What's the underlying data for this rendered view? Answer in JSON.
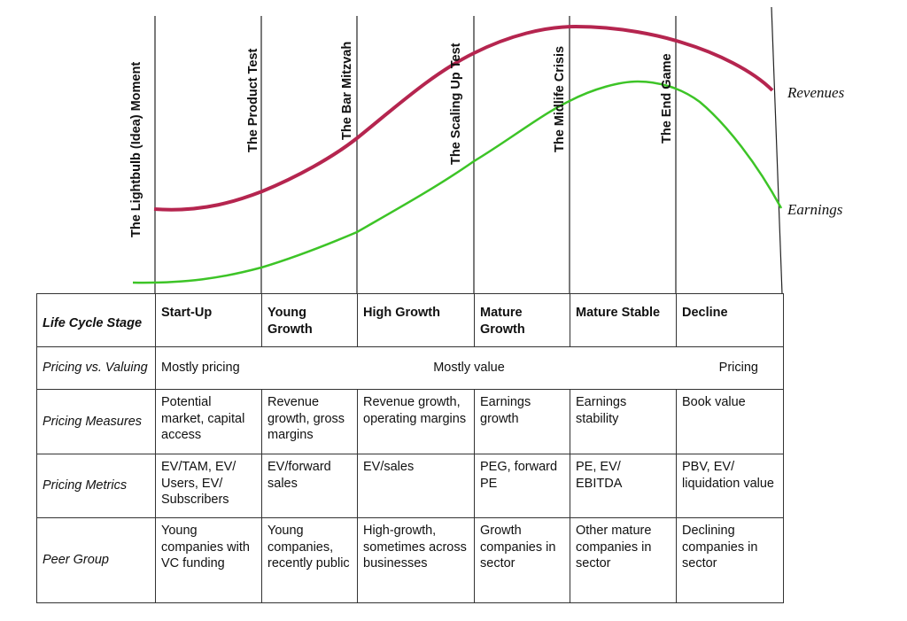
{
  "curves": {
    "revenues_label": "Revenues",
    "earnings_label": "Earnings",
    "revenues_color": "#B5254F",
    "earnings_color": "#3DC427"
  },
  "stage_titles": [
    "The Lightbulb (Idea) Moment",
    "The Product Test",
    "The Bar Mitzvah",
    "The Scaling Up Test",
    "The Midlife Crisis",
    "The End Game"
  ],
  "table": {
    "header": {
      "label": "Life Cycle Stage",
      "stages": [
        "Start-Up",
        "Young Growth",
        "High Growth",
        "Mature Growth",
        "Mature Stable",
        "Decline"
      ]
    },
    "pricing_vs_valuing": {
      "label": "Pricing vs. Valuing",
      "start": "Mostly pricing",
      "middle": "Mostly value",
      "end": "Pricing"
    },
    "pricing_measures": {
      "label": "Pricing Measures",
      "cells": [
        "Potential market, capital access",
        "Revenue growth, gross margins",
        "Revenue growth, operating margins",
        "Earnings growth",
        "Earnings stability",
        "Book value"
      ]
    },
    "pricing_metrics": {
      "label": "Pricing Metrics",
      "cells": [
        "EV/TAM, EV/ Users, EV/ Subscribers",
        "EV/forward sales",
        "EV/sales",
        "PEG, forward PE",
        "PE, EV/ EBITDA",
        "PBV, EV/ liquidation value"
      ]
    },
    "peer_group": {
      "label": "Peer Group",
      "cells": [
        "Young companies with VC funding",
        "Young companies, recently public",
        "High-growth, sometimes across businesses",
        "Growth companies in sector",
        "Other mature companies in sector",
        "Declining companies in sector"
      ]
    }
  }
}
